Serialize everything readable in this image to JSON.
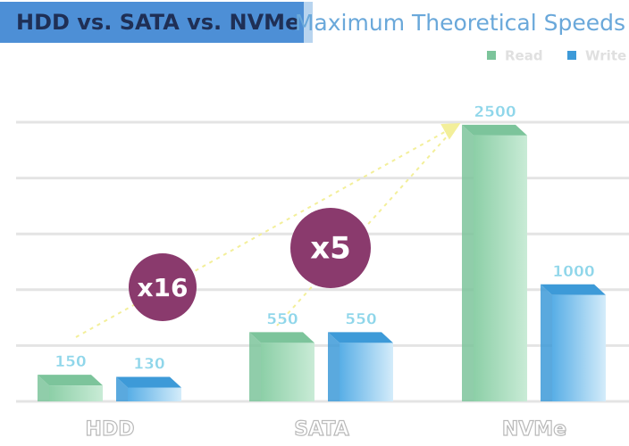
{
  "chart_data": {
    "type": "bar3d",
    "title": "HDD vs. SATA vs. NVMe",
    "subtitle": "Maximum Theoretical Speeds",
    "categories": [
      "HDD",
      "SATA",
      "NVMe"
    ],
    "series": [
      {
        "name": "Read",
        "color": "#7cc49b",
        "values": [
          150,
          550,
          2500
        ]
      },
      {
        "name": "Write",
        "color": "#3d9ad8",
        "values": [
          130,
          550,
          1000
        ]
      }
    ],
    "ylim": [
      0,
      2625
    ],
    "grid": true,
    "annotations": [
      "x16",
      "x5"
    ]
  }
}
